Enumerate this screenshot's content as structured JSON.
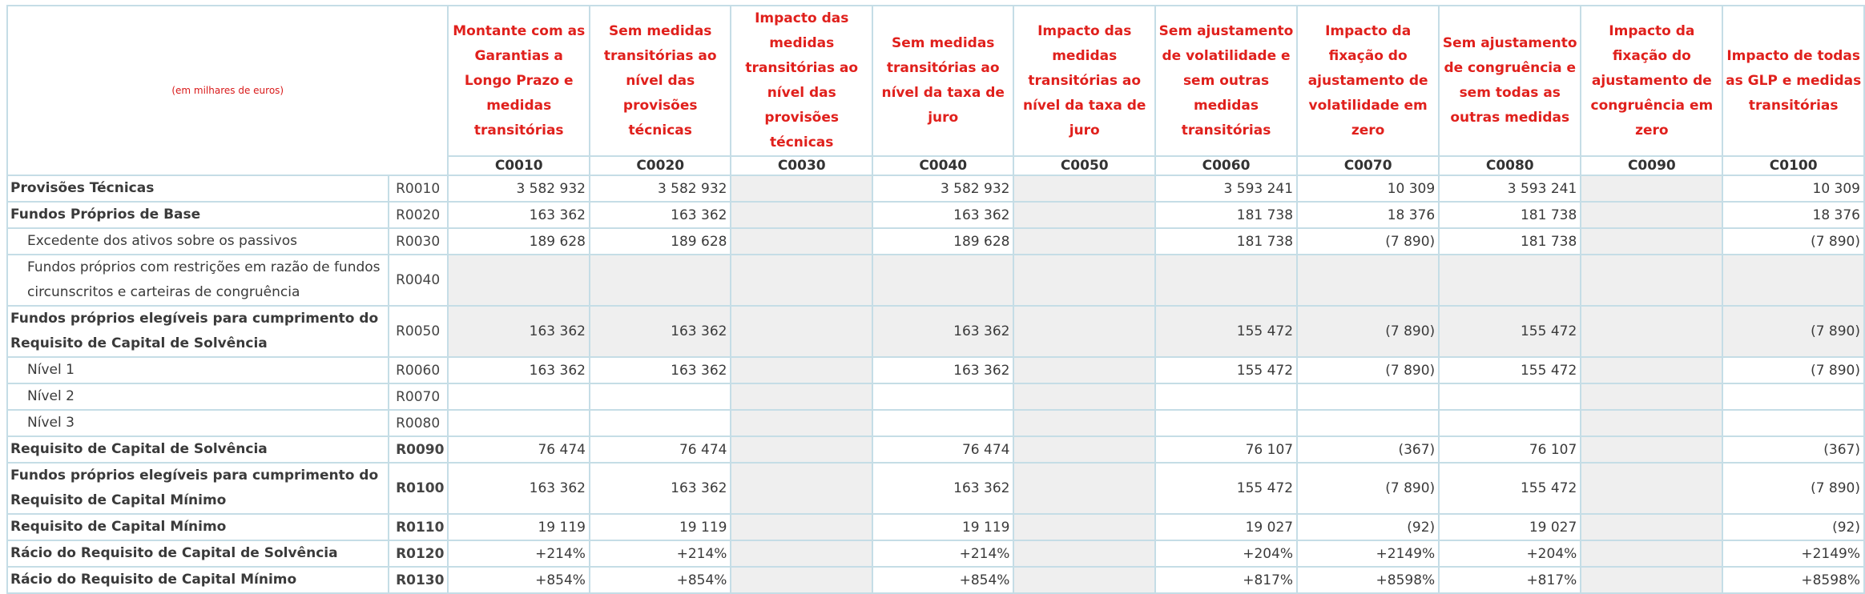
{
  "unit_label": "(em milhares de euros)",
  "columns": [
    {
      "header": "Montante com as Garantias a Longo Prazo e medidas transitórias",
      "code": "C0010"
    },
    {
      "header": "Sem medidas transitórias ao nível das provisões técnicas",
      "code": "C0020"
    },
    {
      "header": "Impacto das medidas transitórias ao nível das provisões técnicas",
      "code": "C0030"
    },
    {
      "header": "Sem medidas transitórias ao nível da taxa de juro",
      "code": "C0040"
    },
    {
      "header": "Impacto das medidas transitórias ao nível da taxa de juro",
      "code": "C0050"
    },
    {
      "header": "Sem ajustamento de volatilidade e sem outras medidas transitórias",
      "code": "C0060"
    },
    {
      "header": "Impacto da fixação do ajustamento de volatilidade em zero",
      "code": "C0070"
    },
    {
      "header": "Sem ajustamento de congruência e sem todas as outras medidas",
      "code": "C0080"
    },
    {
      "header": "Impacto da fixação do ajustamento de congruência em zero",
      "code": "C0090"
    },
    {
      "header": "Impacto de todas as GLP e medidas transitórias",
      "code": "C0100"
    }
  ],
  "rows": [
    {
      "label": "Provisões Técnicas",
      "code": "R0010",
      "values": [
        "3 582 932",
        "3 582 932",
        "",
        "3 582 932",
        "",
        "3 593 241",
        "10 309",
        "3 593 241",
        "",
        "10 309"
      ]
    },
    {
      "label": "Fundos Próprios de Base",
      "code": "R0020",
      "values": [
        "163 362",
        "163 362",
        "",
        "163 362",
        "",
        "181 738",
        "18 376",
        "181 738",
        "",
        "18 376"
      ]
    },
    {
      "label": "Excedente dos ativos sobre os passivos",
      "code": "R0030",
      "values": [
        "189 628",
        "189 628",
        "",
        "189 628",
        "",
        "181 738",
        "(7 890)",
        "181 738",
        "",
        "(7 890)"
      ]
    },
    {
      "label": "Fundos próprios com restrições em razão de fundos circunscritos e carteiras de congruência",
      "code": "R0040",
      "values": [
        "",
        "",
        "",
        "",
        "",
        "",
        "",
        "",
        "",
        ""
      ]
    },
    {
      "label": "Fundos próprios elegíveis para cumprimento do Requisito de Capital de Solvência",
      "code": "R0050",
      "values": [
        "163 362",
        "163 362",
        "",
        "163 362",
        "",
        "155 472",
        "(7 890)",
        "155 472",
        "",
        "(7 890)"
      ]
    },
    {
      "label": "Nível 1",
      "code": "R0060",
      "values": [
        "163 362",
        "163 362",
        "",
        "163 362",
        "",
        "155 472",
        "(7 890)",
        "155 472",
        "",
        "(7 890)"
      ]
    },
    {
      "label": "Nível 2",
      "code": "R0070",
      "values": [
        "",
        "",
        "",
        "",
        "",
        "",
        "",
        "",
        "",
        ""
      ]
    },
    {
      "label": "Nível 3",
      "code": "R0080",
      "values": [
        "",
        "",
        "",
        "",
        "",
        "",
        "",
        "",
        "",
        ""
      ]
    },
    {
      "label": "Requisito de Capital de Solvência",
      "code": "R0090",
      "values": [
        "76 474",
        "76 474",
        "",
        "76 474",
        "",
        "76 107",
        "(367)",
        "76 107",
        "",
        "(367)"
      ]
    },
    {
      "label": "Fundos próprios elegíveis para cumprimento do Requisito de Capital Mínimo",
      "code": "R0100",
      "values": [
        "163 362",
        "163 362",
        "",
        "163 362",
        "",
        "155 472",
        "(7 890)",
        "155 472",
        "",
        "(7 890)"
      ]
    },
    {
      "label": "Requisito de Capital Mínimo",
      "code": "R0110",
      "values": [
        "19 119",
        "19 119",
        "",
        "19 119",
        "",
        "19 027",
        "(92)",
        "19 027",
        "",
        "(92)"
      ]
    },
    {
      "label": "Rácio do Requisito de Capital de Solvência",
      "code": "R0120",
      "values": [
        "+214%",
        "+214%",
        "",
        "+214%",
        "",
        "+204%",
        "+2149%",
        "+204%",
        "",
        "+2149%"
      ]
    },
    {
      "label": "Rácio do Requisito de Capital Mínimo",
      "code": "R0130",
      "values": [
        "+854%",
        "+854%",
        "",
        "+854%",
        "",
        "+817%",
        "+8598%",
        "+817%",
        "",
        "+8598%"
      ]
    }
  ]
}
